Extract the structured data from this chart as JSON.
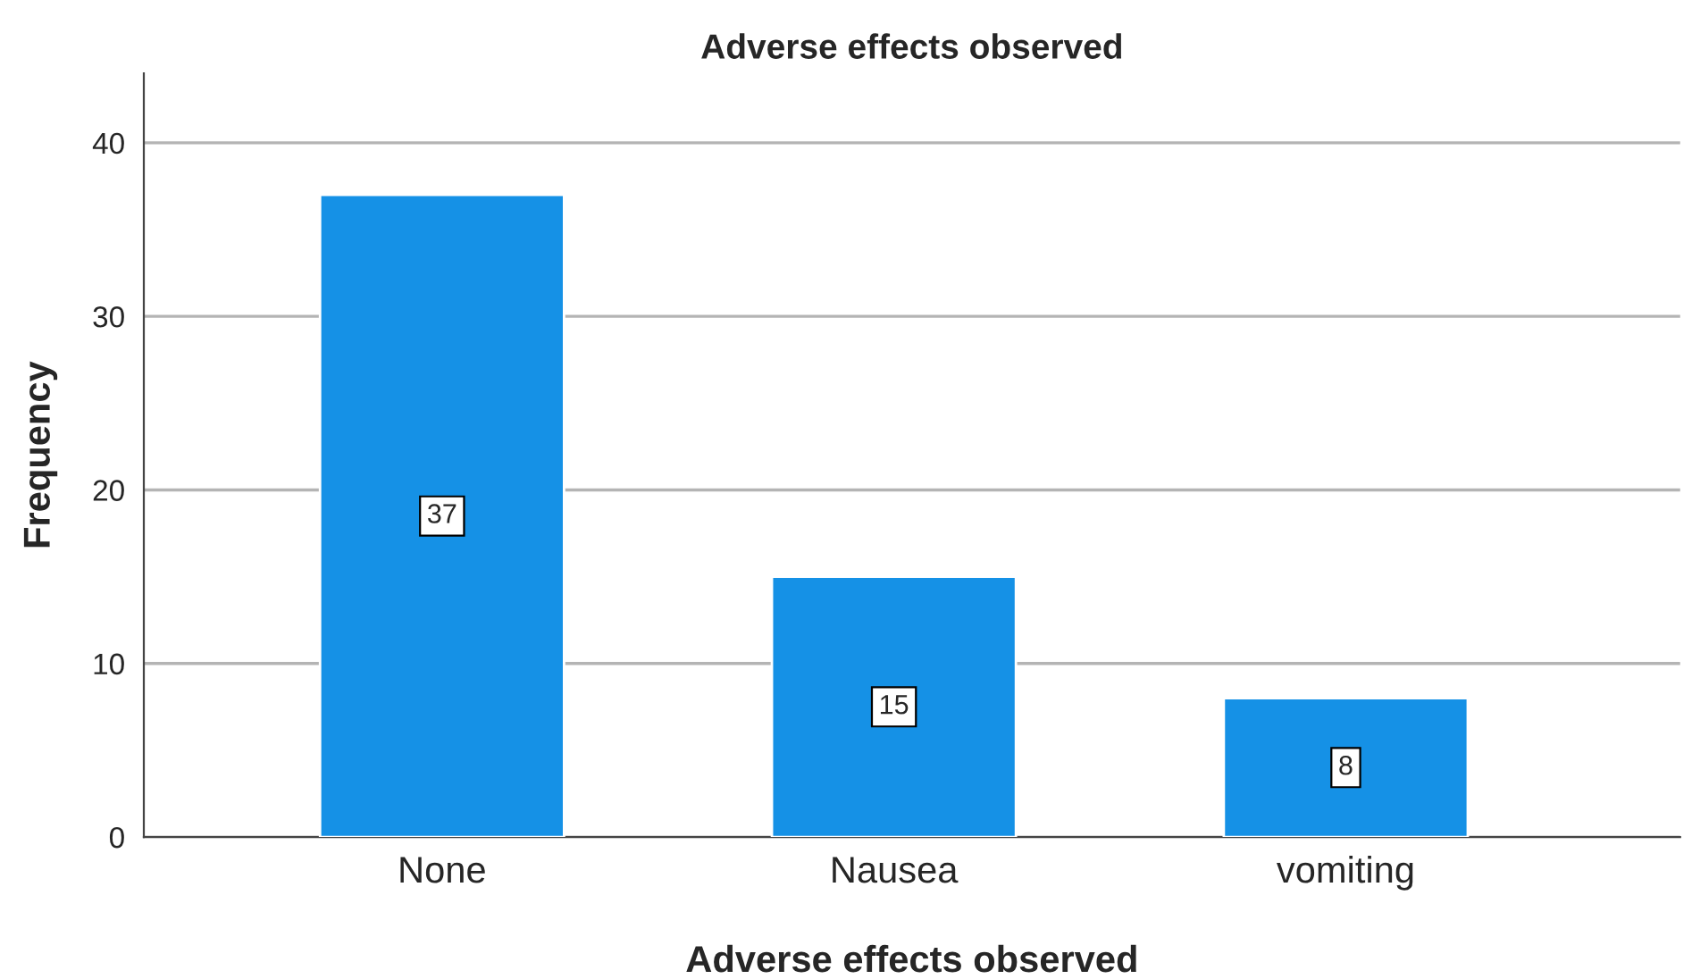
{
  "chart_data": {
    "type": "bar",
    "title": "Adverse effects observed",
    "xlabel": "Adverse effects observed",
    "ylabel": "Frequency",
    "categories": [
      "None",
      "Nausea",
      "vomiting"
    ],
    "values": [
      37,
      15,
      8
    ],
    "color": "#1591e6",
    "ylim": [
      0,
      44
    ],
    "yticks": [
      0,
      10,
      20,
      30,
      40
    ],
    "grid": "y",
    "data_labels": true
  }
}
